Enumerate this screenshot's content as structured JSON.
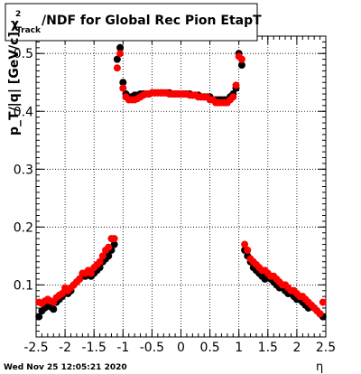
{
  "chart_data": {
    "type": "scatter",
    "title": {
      "prefix": "χ",
      "superscript": "2",
      "subscript": "Track",
      "rest": "/NDF for Global Rec Pion EtapT"
    },
    "xlabel": "η",
    "ylabel": "p_T/|q| [GeV/c]",
    "xlim": [
      -2.5,
      2.5
    ],
    "ylim": [
      0.01,
      0.53
    ],
    "x_ticks": [
      "-2.5",
      "-2",
      "-1.5",
      "-1",
      "-0.5",
      "0",
      "0.5",
      "1",
      "1.5",
      "2",
      "2.5"
    ],
    "y_ticks": [
      "0.1",
      "0.2",
      "0.3",
      "0.4",
      "0.5"
    ],
    "grid": true,
    "timestamp": "Wed Nov 25 12:05:21 2020",
    "series": [
      {
        "color": "#000000",
        "x": [
          -2.45,
          -2.4,
          -2.35,
          -2.3,
          -2.25,
          -2.2,
          -2.15,
          -2.1,
          -2.05,
          -2.0,
          -1.95,
          -1.9,
          -1.85,
          -1.8,
          -1.75,
          -1.7,
          -1.65,
          -1.6,
          -1.55,
          -1.5,
          -1.45,
          -1.4,
          -1.35,
          -1.3,
          -1.25,
          -1.2,
          -1.15,
          -1.1,
          -1.05,
          -1.0,
          -0.95,
          -0.9,
          -0.85,
          -0.8,
          -0.75,
          -0.7,
          -0.65,
          -0.6,
          -0.55,
          -0.5,
          -0.45,
          -0.4,
          -0.35,
          -0.3,
          -0.25,
          -0.2,
          -0.15,
          -0.1,
          -0.05,
          0.0,
          0.05,
          0.1,
          0.15,
          0.2,
          0.25,
          0.3,
          0.35,
          0.4,
          0.45,
          0.5,
          0.55,
          0.6,
          0.65,
          0.7,
          0.75,
          0.8,
          0.85,
          0.9,
          0.95,
          1.0,
          1.05,
          1.1,
          1.15,
          1.2,
          1.25,
          1.3,
          1.35,
          1.4,
          1.45,
          1.5,
          1.55,
          1.6,
          1.65,
          1.7,
          1.75,
          1.8,
          1.85,
          1.9,
          1.95,
          2.0,
          2.05,
          2.1,
          2.15,
          2.2,
          2.25,
          2.3,
          2.35,
          2.4,
          2.45
        ],
        "y": [
          0.045,
          0.055,
          0.06,
          0.065,
          0.062,
          0.058,
          0.07,
          0.075,
          0.08,
          0.09,
          0.085,
          0.09,
          0.1,
          0.105,
          0.11,
          0.115,
          0.115,
          0.12,
          0.115,
          0.12,
          0.125,
          0.13,
          0.14,
          0.145,
          0.15,
          0.16,
          0.17,
          0.49,
          0.51,
          0.45,
          0.43,
          0.425,
          0.425,
          0.428,
          0.428,
          0.43,
          0.43,
          0.43,
          0.43,
          0.432,
          0.432,
          0.432,
          0.432,
          0.432,
          0.432,
          0.432,
          0.43,
          0.43,
          0.43,
          0.43,
          0.43,
          0.43,
          0.43,
          0.428,
          0.428,
          0.428,
          0.425,
          0.425,
          0.425,
          0.425,
          0.42,
          0.42,
          0.42,
          0.42,
          0.42,
          0.42,
          0.425,
          0.43,
          0.44,
          0.5,
          0.48,
          0.16,
          0.15,
          0.14,
          0.13,
          0.125,
          0.12,
          0.115,
          0.11,
          0.115,
          0.11,
          0.105,
          0.1,
          0.095,
          0.095,
          0.09,
          0.085,
          0.085,
          0.08,
          0.075,
          0.075,
          0.07,
          0.065,
          0.06,
          0.065,
          0.06,
          0.055,
          0.05,
          0.045
        ]
      },
      {
        "color": "#ff0000",
        "x": [
          -2.45,
          -2.4,
          -2.35,
          -2.3,
          -2.25,
          -2.2,
          -2.15,
          -2.1,
          -2.05,
          -2.0,
          -1.95,
          -1.9,
          -1.85,
          -1.8,
          -1.75,
          -1.7,
          -1.65,
          -1.6,
          -1.55,
          -1.5,
          -1.45,
          -1.4,
          -1.35,
          -1.3,
          -1.25,
          -1.2,
          -1.15,
          -1.1,
          -1.05,
          -1.0,
          -0.95,
          -0.9,
          -0.85,
          -0.8,
          -0.75,
          -0.7,
          -0.65,
          -0.6,
          -0.55,
          -0.5,
          -0.45,
          -0.4,
          -0.35,
          -0.3,
          -0.25,
          -0.2,
          -0.15,
          -0.1,
          -0.05,
          0.0,
          0.05,
          0.1,
          0.15,
          0.2,
          0.25,
          0.3,
          0.35,
          0.4,
          0.45,
          0.5,
          0.55,
          0.6,
          0.65,
          0.7,
          0.75,
          0.8,
          0.85,
          0.9,
          0.95,
          1.0,
          1.05,
          1.1,
          1.15,
          1.2,
          1.25,
          1.3,
          1.35,
          1.4,
          1.45,
          1.5,
          1.55,
          1.6,
          1.65,
          1.7,
          1.75,
          1.8,
          1.85,
          1.9,
          1.95,
          2.0,
          2.05,
          2.1,
          2.15,
          2.2,
          2.25,
          2.3,
          2.35,
          2.4,
          2.45
        ],
        "y": [
          0.07,
          0.068,
          0.072,
          0.075,
          0.072,
          0.07,
          0.078,
          0.082,
          0.085,
          0.095,
          0.09,
          0.095,
          0.1,
          0.105,
          0.11,
          0.12,
          0.12,
          0.125,
          0.12,
          0.13,
          0.135,
          0.14,
          0.15,
          0.16,
          0.165,
          0.18,
          0.18,
          0.475,
          0.5,
          0.44,
          0.425,
          0.42,
          0.42,
          0.42,
          0.422,
          0.425,
          0.428,
          0.43,
          0.43,
          0.432,
          0.432,
          0.432,
          0.432,
          0.432,
          0.432,
          0.43,
          0.43,
          0.43,
          0.43,
          0.43,
          0.43,
          0.43,
          0.428,
          0.428,
          0.428,
          0.425,
          0.425,
          0.425,
          0.425,
          0.42,
          0.42,
          0.415,
          0.415,
          0.415,
          0.415,
          0.415,
          0.42,
          0.425,
          0.445,
          0.495,
          0.49,
          0.17,
          0.16,
          0.145,
          0.14,
          0.135,
          0.13,
          0.125,
          0.125,
          0.12,
          0.115,
          0.115,
          0.11,
          0.105,
          0.1,
          0.1,
          0.095,
          0.09,
          0.09,
          0.085,
          0.08,
          0.08,
          0.075,
          0.07,
          0.065,
          0.06,
          0.055,
          0.05,
          0.07
        ]
      }
    ]
  }
}
